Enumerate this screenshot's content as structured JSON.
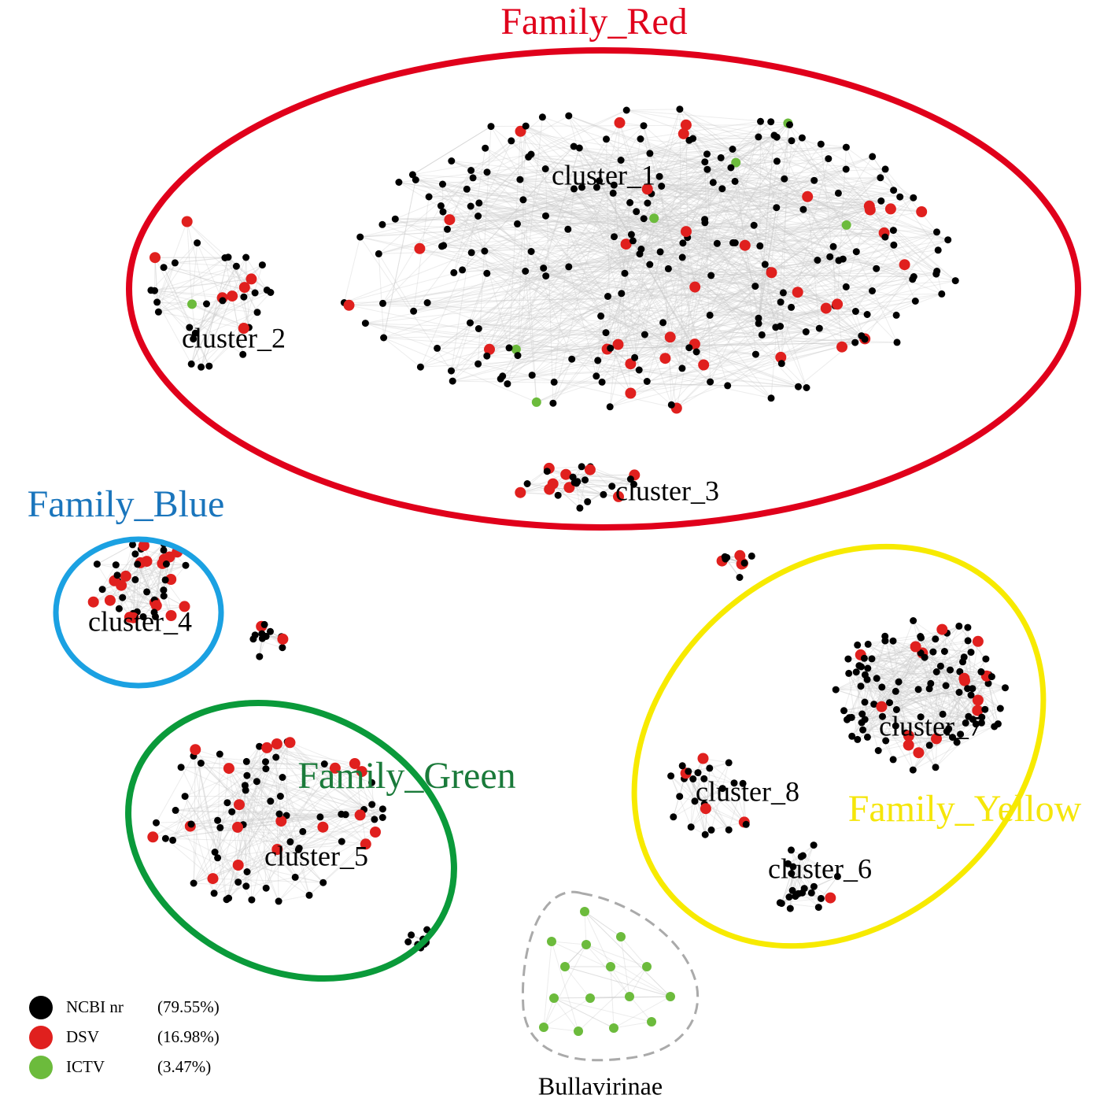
{
  "families": [
    {
      "label": "Family_Red"
    },
    {
      "label": "Family_Blue"
    },
    {
      "label": "Family_Green"
    },
    {
      "label": "Family_Yellow"
    }
  ],
  "clusters": [
    {
      "label": "cluster_1"
    },
    {
      "label": "cluster_2"
    },
    {
      "label": "cluster_3"
    },
    {
      "label": "cluster_4"
    },
    {
      "label": "cluster_5"
    },
    {
      "label": "cluster_6"
    },
    {
      "label": "cluster_7"
    },
    {
      "label": "cluster_8"
    }
  ],
  "subfamily": {
    "label": "Bullavirinae"
  },
  "legend": [
    {
      "name": "NCBI nr",
      "share": "(79.55%)"
    },
    {
      "name": "DSV",
      "share": "(16.98%)"
    },
    {
      "name": "ICTV",
      "share": "(3.47%)"
    }
  ]
}
